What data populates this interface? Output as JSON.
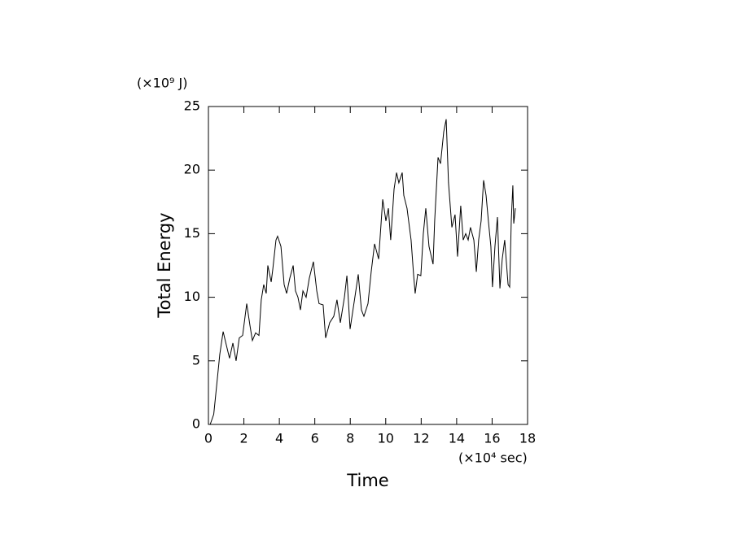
{
  "chart_data": {
    "type": "line",
    "y_label": "Total Energy",
    "x_label": "Time",
    "y_unit": "(×10⁹ J)",
    "x_unit": "(×10⁴ sec)",
    "xlim": [
      0,
      18
    ],
    "xticks": [
      0,
      2,
      4,
      6,
      8,
      10,
      12,
      14,
      16,
      18
    ],
    "ylim": [
      0,
      25
    ],
    "yticks": [
      0,
      5,
      10,
      15,
      20,
      25
    ],
    "series": [
      {
        "color": "#000000",
        "x": [
          0.1,
          0.3,
          0.46,
          0.64,
          0.83,
          1.0,
          1.19,
          1.38,
          1.56,
          1.74,
          1.93,
          2.16,
          2.34,
          2.48,
          2.66,
          2.85,
          2.98,
          3.12,
          3.26,
          3.35,
          3.54,
          3.63,
          3.81,
          3.9,
          4.09,
          4.27,
          4.41,
          4.59,
          4.78,
          4.91,
          5.05,
          5.19,
          5.33,
          5.51,
          5.69,
          5.92,
          6.11,
          6.24,
          6.47,
          6.61,
          6.84,
          7.07,
          7.25,
          7.44,
          7.67,
          7.81,
          7.99,
          8.26,
          8.45,
          8.63,
          8.77,
          9.0,
          9.18,
          9.37,
          9.6,
          9.83,
          10.01,
          10.15,
          10.28,
          10.47,
          10.61,
          10.74,
          10.93,
          11.02,
          11.2,
          11.43,
          11.57,
          11.66,
          11.8,
          11.98,
          12.12,
          12.26,
          12.44,
          12.67,
          12.76,
          12.95,
          13.09,
          13.27,
          13.41,
          13.54,
          13.73,
          13.91,
          14.05,
          14.23,
          14.37,
          14.51,
          14.65,
          14.78,
          14.97,
          15.11,
          15.24,
          15.38,
          15.52,
          15.66,
          15.79,
          15.93,
          16.02,
          16.16,
          16.3,
          16.44,
          16.57,
          16.71,
          16.9,
          16.99,
          17.08,
          17.17,
          17.22,
          17.31
        ],
        "values": [
          0,
          0.8,
          3,
          5.5,
          7.3,
          6.3,
          5.2,
          6.4,
          5.0,
          6.8,
          7.0,
          9.5,
          7.8,
          6.6,
          7.2,
          7.0,
          9.8,
          11.0,
          10.3,
          12.5,
          11.2,
          12.2,
          14.5,
          14.8,
          14.0,
          11.0,
          10.3,
          11.5,
          12.5,
          10.5,
          10.0,
          9.0,
          10.5,
          10.0,
          11.5,
          12.8,
          10.5,
          9.5,
          9.4,
          6.8,
          8.0,
          8.5,
          9.8,
          8.0,
          10.0,
          11.7,
          7.5,
          10.0,
          11.8,
          9.0,
          8.5,
          9.5,
          12.0,
          14.2,
          13.0,
          17.7,
          16.0,
          17.0,
          14.5,
          18.5,
          19.8,
          19.0,
          19.8,
          18.0,
          17.0,
          14.5,
          11.8,
          10.3,
          11.8,
          11.7,
          15.0,
          17.0,
          14.0,
          12.6,
          16.0,
          21.0,
          20.5,
          23.0,
          24.0,
          19.0,
          15.5,
          16.5,
          13.2,
          17.2,
          14.5,
          15.0,
          14.5,
          15.5,
          14.5,
          12.0,
          14.5,
          16.0,
          19.2,
          18.0,
          16.0,
          14.0,
          10.8,
          14.0,
          16.3,
          10.7,
          13.0,
          14.5,
          11.0,
          10.8,
          16.0,
          18.8,
          15.8,
          17.0
        ]
      }
    ]
  }
}
